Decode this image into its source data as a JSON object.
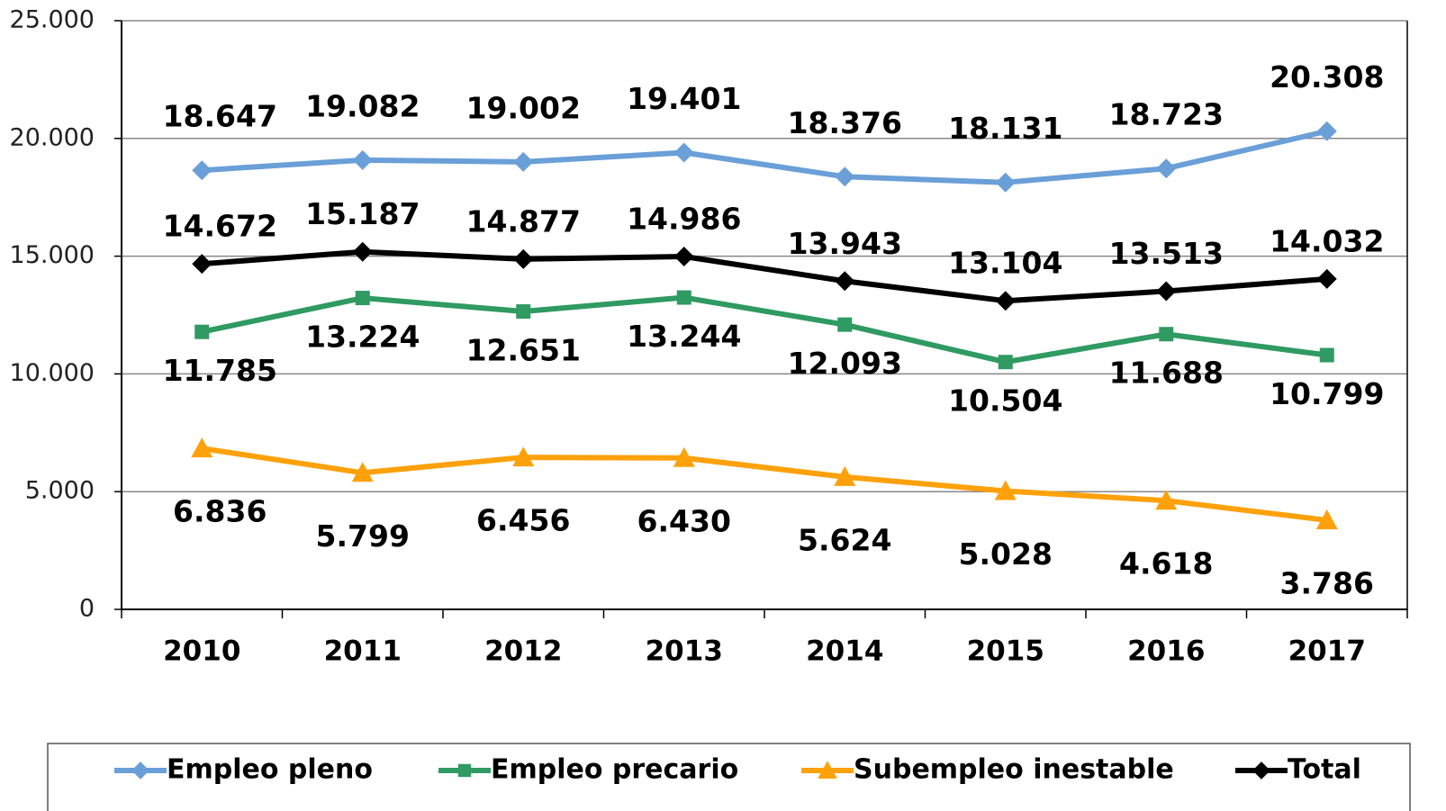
{
  "chart_data": {
    "type": "line",
    "categories": [
      "2010",
      "2011",
      "2012",
      "2013",
      "2014",
      "2015",
      "2016",
      "2017"
    ],
    "series": [
      {
        "name": "Empleo pleno",
        "color": "#6a9fd8",
        "marker": "diamond",
        "values": [
          18647,
          19082,
          19002,
          19401,
          18376,
          18131,
          18723,
          20308
        ],
        "value_labels": [
          "18.647",
          "19.082",
          "19.002",
          "19.401",
          "18.376",
          "18.131",
          "18.723",
          "20.308"
        ]
      },
      {
        "name": "Empleo precario",
        "color": "#2f9a62",
        "marker": "square",
        "values": [
          11785,
          13224,
          12651,
          13244,
          12093,
          10504,
          11688,
          10799
        ],
        "value_labels": [
          "11.785",
          "13.224",
          "12.651",
          "13.244",
          "12.093",
          "10.504",
          "11.688",
          "10.799"
        ]
      },
      {
        "name": "Subempleo inestable",
        "color": "#ffa10a",
        "marker": "triangle",
        "values": [
          6836,
          5799,
          6456,
          6430,
          5624,
          5028,
          4618,
          3786
        ],
        "value_labels": [
          "6.836",
          "5.799",
          "6.456",
          "6.430",
          "5.624",
          "5.028",
          "4.618",
          "3.786"
        ]
      },
      {
        "name": "Total",
        "color": "#000000",
        "marker": "diamond",
        "values": [
          14672,
          15187,
          14877,
          14986,
          13943,
          13104,
          13513,
          14032
        ],
        "value_labels": [
          "14.672",
          "15.187",
          "14.877",
          "14.986",
          "13.943",
          "13.104",
          "13.513",
          "14.032"
        ]
      }
    ],
    "ylim": [
      0,
      25000
    ],
    "yticks": [
      0,
      {
        "value": 5000,
        "label": "5.000"
      },
      {
        "value": 10000,
        "label": "10.000"
      },
      {
        "value": 15000,
        "label": "15.000"
      },
      {
        "value": 20000,
        "label": "20.000"
      },
      {
        "value": 25000,
        "label": "25.000"
      }
    ],
    "grid": true,
    "legend": "bottom"
  }
}
